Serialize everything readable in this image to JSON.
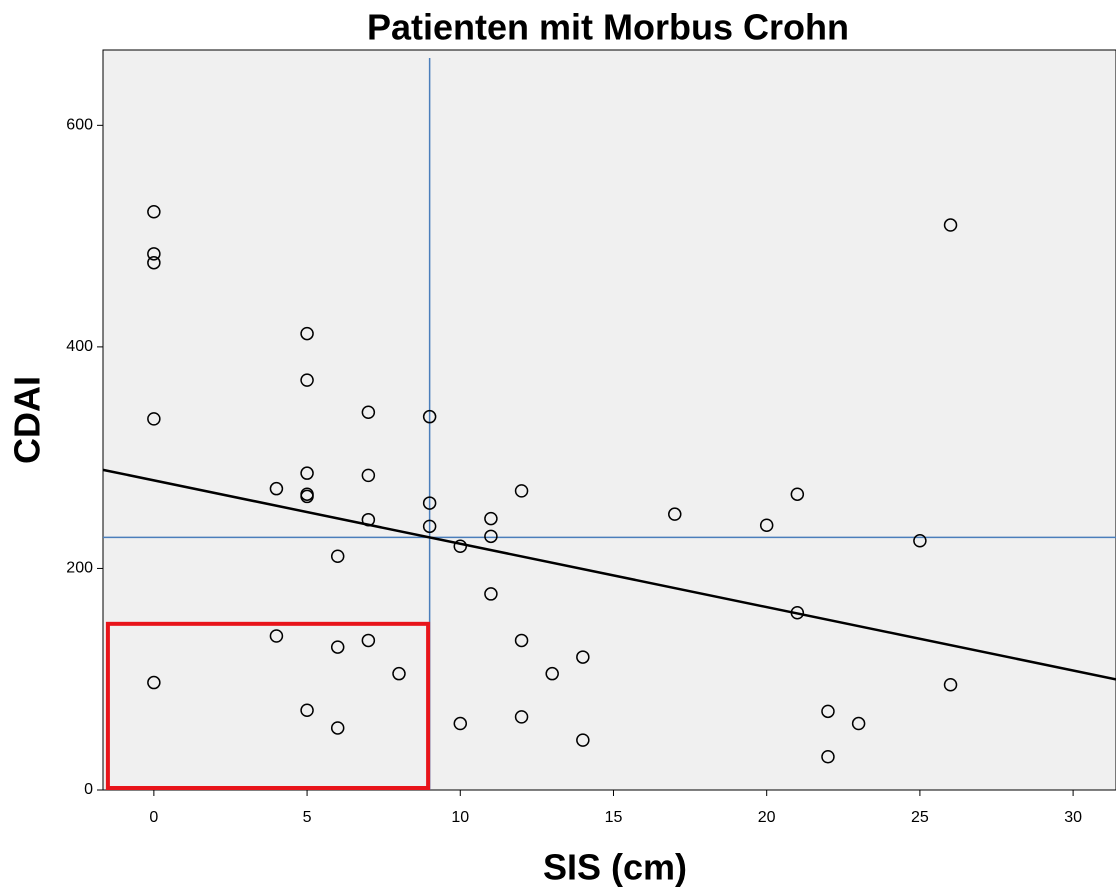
{
  "chart_data": {
    "type": "scatter",
    "title": "Patienten mit Morbus Crohn",
    "x_label": "SIS (cm)",
    "y_label": "CDAI",
    "xlim": [
      -1.66,
      31.4
    ],
    "ylim": [
      0,
      668
    ],
    "xticks": [
      0,
      5,
      10,
      15,
      20,
      25,
      30
    ],
    "yticks": [
      0,
      200,
      400,
      600
    ],
    "grid": false,
    "series": [
      {
        "color": "#000000",
        "x": [
          0,
          0,
          0,
          0,
          0,
          4,
          4,
          5,
          5,
          5,
          5,
          5,
          5,
          6,
          6,
          6,
          7,
          7,
          7,
          7,
          8,
          9,
          9,
          9,
          10,
          10,
          11,
          11,
          11,
          12,
          12,
          12,
          13,
          14,
          14,
          17,
          20,
          21,
          21,
          22,
          22,
          23,
          25,
          26,
          26
        ],
        "y": [
          522,
          484,
          476,
          335,
          97,
          272,
          139,
          412,
          370,
          286,
          267,
          265,
          72,
          211,
          129,
          56,
          341,
          284,
          244,
          135,
          105,
          337,
          259,
          238,
          220,
          60,
          245,
          229,
          177,
          270,
          135,
          66,
          105,
          120,
          45,
          249,
          239,
          267,
          160,
          71,
          30,
          60,
          225,
          510,
          95
        ]
      }
    ],
    "fit": {
      "intercept": 279.5,
      "slope": -5.72,
      "color": "#000000"
    },
    "reference_lines": {
      "x": 9,
      "y": 228,
      "color": "#4a7ebb"
    },
    "highlight": {
      "x": [
        -1.5,
        8.95
      ],
      "y": [
        0,
        150
      ],
      "color": "#e8141a"
    }
  }
}
